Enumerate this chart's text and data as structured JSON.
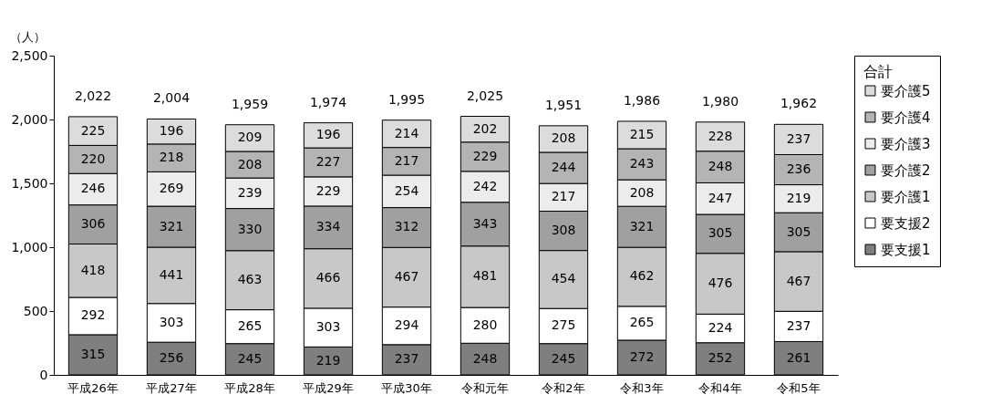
{
  "chart_data": {
    "type": "bar",
    "stacked": true,
    "ylabel": "（人）",
    "legend_title": "合計",
    "legend": "right",
    "grid": false,
    "data_labels": true,
    "categories": [
      "平成26年",
      "平成27年",
      "平成28年",
      "平成29年",
      "平成30年",
      "令和元年",
      "令和2年",
      "令和3年",
      "令和4年",
      "令和5年"
    ],
    "ylim": [
      0,
      2500
    ],
    "yticks": [
      0,
      {
        "value": 500,
        "label": "500"
      },
      {
        "value": 1000,
        "label": "1,000"
      },
      {
        "value": 1500,
        "label": "1,500"
      },
      {
        "value": 2000,
        "label": "2,000"
      },
      {
        "value": 2500,
        "label": "2,500"
      }
    ],
    "series": [
      {
        "name": "要支援1",
        "color": "#7f7f7f",
        "values": [
          315,
          256,
          245,
          219,
          237,
          248,
          245,
          272,
          252,
          261
        ]
      },
      {
        "name": "要支援2",
        "color": "#ffffff",
        "values": [
          292,
          303,
          265,
          303,
          294,
          280,
          275,
          265,
          224,
          237
        ]
      },
      {
        "name": "要介護1",
        "color": "#c8c8c8",
        "values": [
          418,
          441,
          463,
          466,
          467,
          481,
          454,
          462,
          476,
          467
        ]
      },
      {
        "name": "要介護2",
        "color": "#a0a0a0",
        "values": [
          306,
          321,
          330,
          334,
          312,
          343,
          308,
          321,
          305,
          305
        ]
      },
      {
        "name": "要介護3",
        "color": "#ececec",
        "values": [
          246,
          269,
          239,
          229,
          254,
          242,
          217,
          208,
          247,
          219
        ]
      },
      {
        "name": "要介護4",
        "color": "#b4b4b4",
        "values": [
          220,
          218,
          208,
          227,
          217,
          229,
          244,
          243,
          248,
          236
        ]
      },
      {
        "name": "要介護5",
        "color": "#dcdcdc",
        "values": [
          225,
          196,
          209,
          196,
          214,
          202,
          208,
          215,
          228,
          237
        ]
      }
    ],
    "totals": [
      "2,022",
      "2,004",
      "1,959",
      "1,974",
      "1,995",
      "2,025",
      "1,951",
      "1,986",
      "1,980",
      "1,962"
    ]
  }
}
